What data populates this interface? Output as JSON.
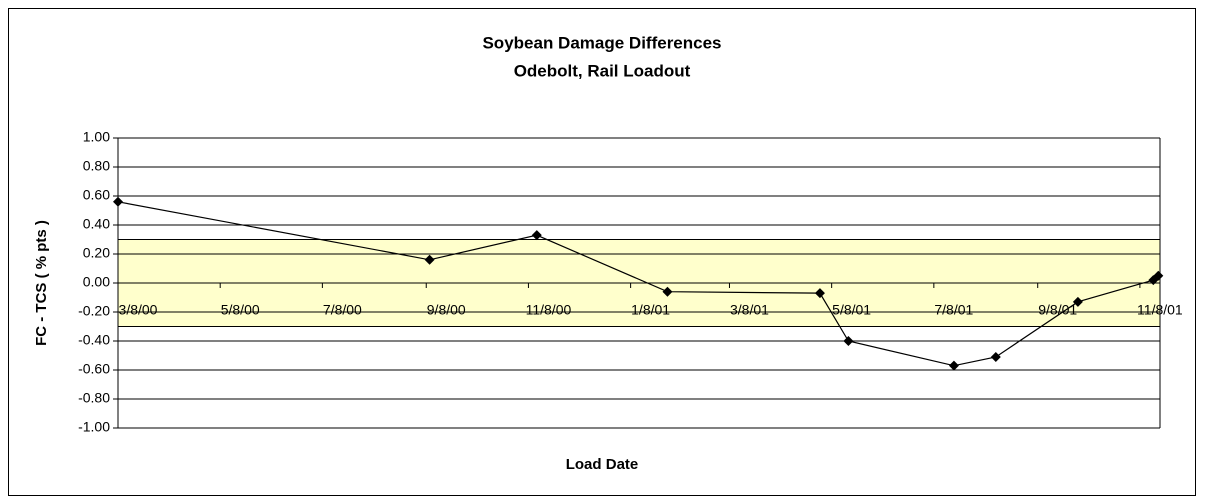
{
  "chart_data": {
    "type": "line",
    "title": [
      "Soybean Damage Differences",
      "Odebolt, Rail Loadout"
    ],
    "x_label": "Load Date",
    "y_label": "FC - TCS ( % pts )",
    "x": [
      "2000-03-08",
      "2000-09-10",
      "2000-11-13",
      "2001-01-30",
      "2001-05-01",
      "2001-05-18",
      "2001-07-20",
      "2001-08-14",
      "2001-10-02",
      "2001-11-16",
      "2001-11-19"
    ],
    "series": [
      {
        "name": "FC - TCS",
        "color": "#000000",
        "values": [
          0.56,
          0.16,
          0.33,
          -0.06,
          -0.07,
          -0.4,
          -0.57,
          -0.51,
          -0.13,
          0.02,
          0.05
        ]
      }
    ],
    "xlim": [
      "2000-03-08",
      "2001-11-20"
    ],
    "xticks": [
      {
        "value": "2000-03-08",
        "label": "3/8/00"
      },
      {
        "value": "2000-05-08",
        "label": "5/8/00"
      },
      {
        "value": "2000-07-08",
        "label": "7/8/00"
      },
      {
        "value": "2000-09-08",
        "label": "9/8/00"
      },
      {
        "value": "2000-11-08",
        "label": "11/8/00"
      },
      {
        "value": "2001-01-08",
        "label": "1/8/01"
      },
      {
        "value": "2001-03-08",
        "label": "3/8/01"
      },
      {
        "value": "2001-05-08",
        "label": "5/8/01"
      },
      {
        "value": "2001-07-08",
        "label": "7/8/01"
      },
      {
        "value": "2001-09-08",
        "label": "9/8/01"
      },
      {
        "value": "2001-11-08",
        "label": "11/8/01"
      }
    ],
    "ylim": [
      -1,
      1
    ],
    "yticks": [
      {
        "value": -1,
        "label": "-1.00"
      },
      {
        "value": -0.8,
        "label": "-0.80"
      },
      {
        "value": -0.6,
        "label": "-0.60"
      },
      {
        "value": -0.4,
        "label": "-0.40"
      },
      {
        "value": -0.2,
        "label": "-0.20"
      },
      {
        "value": 0,
        "label": "0.00"
      },
      {
        "value": 0.2,
        "label": "0.20"
      },
      {
        "value": 0.4,
        "label": "0.40"
      },
      {
        "value": 0.6,
        "label": "0.60"
      },
      {
        "value": 0.8,
        "label": "0.80"
      },
      {
        "value": 1,
        "label": "1.00"
      }
    ],
    "band": {
      "range": [
        -0.3,
        0.3
      ],
      "color": "#ffffcc"
    },
    "grid": true
  }
}
